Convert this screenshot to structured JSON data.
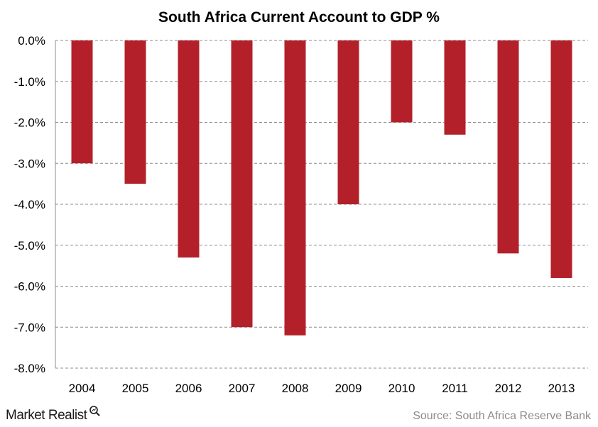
{
  "chart_data": {
    "type": "bar",
    "title": "South Africa Current Account to GDP %",
    "categories": [
      "2004",
      "2005",
      "2006",
      "2007",
      "2008",
      "2009",
      "2010",
      "2011",
      "2012",
      "2013"
    ],
    "values": [
      -3.0,
      -3.5,
      -5.3,
      -7.0,
      -7.2,
      -4.0,
      -2.0,
      -2.3,
      -5.2,
      -5.8
    ],
    "yticks": [
      "0.0%",
      "-1.0%",
      "-2.0%",
      "-3.0%",
      "-4.0%",
      "-5.0%",
      "-6.0%",
      "-7.0%",
      "-8.0%"
    ],
    "ylim": [
      -8,
      0
    ],
    "xlabel": "",
    "ylabel": "",
    "grid": true,
    "bar_color": "#b3202a"
  },
  "footer": {
    "brand": "Market Realist",
    "brand_icon": "magnifier-icon",
    "source": "Source: South Africa Reserve Bank"
  }
}
